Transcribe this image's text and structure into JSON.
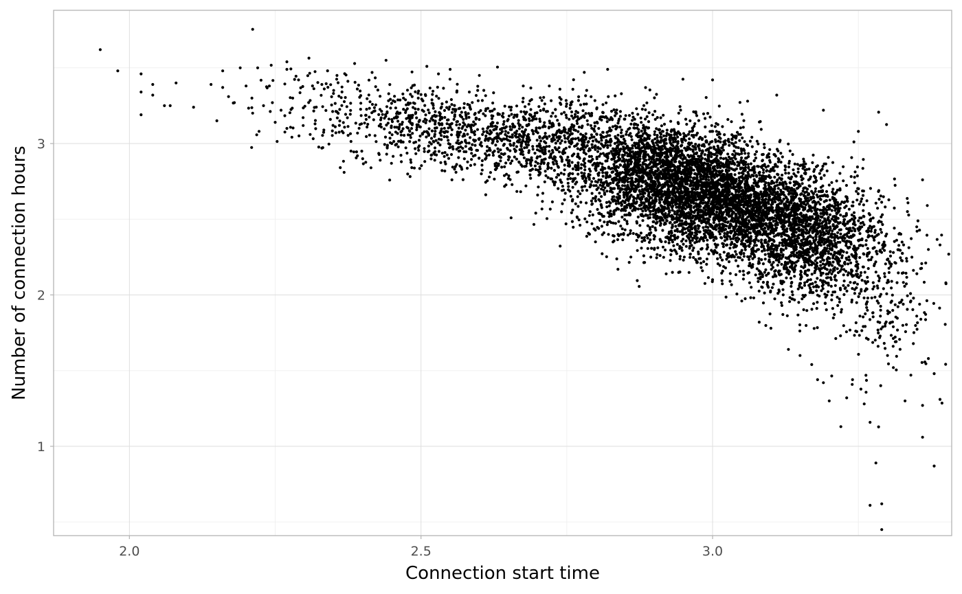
{
  "chart_data": {
    "type": "scatter",
    "title": "",
    "xlabel": "Connection start time",
    "ylabel": "Number of connection hours",
    "xlim": [
      1.87,
      3.41
    ],
    "ylim": [
      0.41,
      3.88
    ],
    "x_ticks": [
      2.0,
      2.5,
      3.0
    ],
    "x_tick_labels": [
      "2.0",
      "2.5",
      "3.0"
    ],
    "y_ticks": [
      1,
      2,
      3
    ],
    "y_tick_labels": [
      "1",
      "2",
      "3"
    ],
    "grid": true,
    "theme": "light",
    "point_color": "#000000",
    "approx_point_count": 8000,
    "points": [
      [
        1.95,
        3.62
      ],
      [
        1.98,
        3.48
      ],
      [
        2.02,
        3.46
      ],
      [
        2.02,
        3.34
      ],
      [
        2.02,
        3.19
      ],
      [
        2.04,
        3.39
      ],
      [
        2.04,
        3.32
      ],
      [
        2.06,
        3.25
      ],
      [
        2.07,
        3.25
      ],
      [
        2.08,
        3.4
      ],
      [
        2.11,
        3.24
      ],
      [
        2.14,
        3.39
      ],
      [
        2.15,
        3.15
      ],
      [
        2.16,
        3.37
      ],
      [
        2.16,
        3.48
      ],
      [
        2.17,
        3.31
      ],
      [
        2.18,
        3.27
      ],
      [
        2.19,
        3.5
      ],
      [
        2.2,
        3.38
      ],
      [
        2.21,
        3.3
      ],
      [
        2.22,
        3.5
      ],
      [
        2.23,
        3.25
      ],
      [
        2.24,
        3.38
      ],
      [
        2.25,
        3.14
      ],
      [
        2.26,
        3.22
      ],
      [
        2.27,
        3.1
      ],
      [
        2.27,
        3.54
      ],
      [
        2.27,
        3.49
      ],
      [
        2.28,
        3.3
      ],
      [
        2.29,
        3.42
      ],
      [
        2.31,
        3.06
      ],
      [
        2.33,
        3.39
      ],
      [
        2.33,
        2.97
      ],
      [
        2.36,
        3.12
      ],
      [
        2.38,
        2.95
      ],
      [
        2.4,
        2.9
      ],
      [
        2.43,
        2.89
      ],
      [
        2.44,
        3.55
      ],
      [
        2.45,
        3.0
      ],
      [
        2.47,
        3.3
      ],
      [
        2.51,
        3.51
      ],
      [
        2.53,
        3.46
      ],
      [
        2.55,
        3.49
      ],
      [
        2.56,
        2.81
      ],
      [
        2.57,
        2.83
      ],
      [
        2.6,
        3.45
      ],
      [
        2.63,
        2.85
      ],
      [
        2.65,
        2.77
      ],
      [
        2.68,
        2.72
      ],
      [
        2.7,
        2.66
      ],
      [
        2.72,
        3.38
      ],
      [
        2.76,
        2.63
      ],
      [
        2.78,
        3.47
      ],
      [
        2.79,
        2.55
      ],
      [
        2.82,
        2.48
      ],
      [
        2.82,
        3.49
      ],
      [
        2.85,
        2.43
      ],
      [
        2.87,
        2.36
      ],
      [
        2.9,
        2.3
      ],
      [
        2.91,
        2.26
      ],
      [
        2.92,
        2.38
      ],
      [
        2.95,
        2.23
      ],
      [
        2.98,
        2.21
      ],
      [
        3.0,
        2.1
      ],
      [
        3.0,
        3.42
      ],
      [
        3.03,
        2.09
      ],
      [
        3.05,
        1.96
      ],
      [
        3.06,
        3.28
      ],
      [
        3.08,
        1.82
      ],
      [
        3.1,
        1.78
      ],
      [
        3.11,
        3.32
      ],
      [
        3.13,
        1.64
      ],
      [
        3.15,
        1.6
      ],
      [
        3.17,
        1.54
      ],
      [
        3.18,
        1.44
      ],
      [
        3.19,
        1.42
      ],
      [
        3.19,
        3.22
      ],
      [
        3.2,
        1.3
      ],
      [
        3.22,
        1.13
      ],
      [
        3.23,
        1.32
      ],
      [
        3.24,
        1.44
      ],
      [
        3.25,
        3.08
      ],
      [
        3.26,
        1.28
      ],
      [
        3.27,
        0.61
      ],
      [
        3.28,
        0.89
      ],
      [
        3.29,
        0.62
      ],
      [
        3.29,
        0.45
      ],
      [
        3.3,
        1.6
      ],
      [
        3.31,
        1.52
      ],
      [
        3.31,
        2.28
      ],
      [
        3.33,
        1.3
      ],
      [
        3.34,
        1.47
      ],
      [
        3.35,
        2.45
      ],
      [
        3.36,
        1.27
      ],
      [
        3.36,
        1.06
      ],
      [
        3.37,
        2.3
      ],
      [
        3.37,
        1.58
      ],
      [
        3.38,
        1.48
      ],
      [
        3.38,
        0.87
      ],
      [
        3.39,
        1.31
      ],
      [
        3.39,
        2.33
      ],
      [
        3.4,
        2.08
      ],
      [
        3.36,
        2.76
      ],
      [
        3.35,
        1.86
      ],
      [
        3.34,
        1.96
      ]
    ],
    "density_clusters": [
      {
        "center": [
          2.92,
          2.78
        ],
        "spread": [
          0.08,
          0.18
        ],
        "count": 2600
      },
      {
        "center": [
          3.05,
          2.55
        ],
        "spread": [
          0.08,
          0.17
        ],
        "count": 2200
      },
      {
        "center": [
          3.17,
          2.35
        ],
        "spread": [
          0.06,
          0.2
        ],
        "count": 1200
      },
      {
        "center": [
          2.7,
          3.02
        ],
        "spread": [
          0.1,
          0.14
        ],
        "count": 900
      },
      {
        "center": [
          2.52,
          3.15
        ],
        "spread": [
          0.07,
          0.13
        ],
        "count": 350
      },
      {
        "center": [
          2.35,
          3.22
        ],
        "spread": [
          0.07,
          0.15
        ],
        "count": 160
      },
      {
        "center": [
          3.28,
          2.05
        ],
        "spread": [
          0.05,
          0.3
        ],
        "count": 280
      }
    ]
  }
}
